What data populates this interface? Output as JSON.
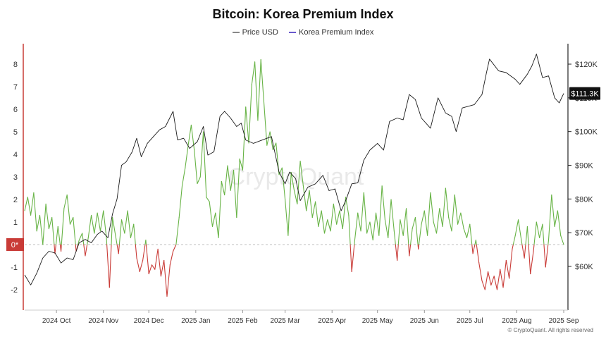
{
  "chart_data": {
    "type": "line",
    "title": "Bitcoin: Korea Premium Index",
    "legend": [
      "Price USD",
      "Korea Premium Index"
    ],
    "watermark": "CryptoQuant",
    "copyright": "© CryptoQuant. All rights reserved",
    "left_axis": {
      "ticks": [
        8,
        7,
        6,
        5,
        4,
        3,
        2,
        1,
        -1,
        -2
      ],
      "zero_label": "0*",
      "ylim": [
        -2.9,
        8.6
      ]
    },
    "right_axis": {
      "ticks": [
        "$120K",
        "$110K",
        "$100K",
        "$90K",
        "$80K",
        "$70K",
        "$60K"
      ],
      "tick_values": [
        120000,
        110000,
        100000,
        90000,
        80000,
        70000,
        60000
      ],
      "current_label": "$111.3K",
      "current_value": 111300
    },
    "x_axis": {
      "ticks": [
        "2024 Oct",
        "2024 Nov",
        "2024 Dec",
        "2025 Jan",
        "2025 Feb",
        "2025 Mar",
        "2025 Apr",
        "2025 May",
        "2025 Jun",
        "2025 Jul",
        "2025 Aug",
        "2025 Sep"
      ],
      "start": "2024-09-10",
      "end": "2025-09-01"
    },
    "series": [
      {
        "name": "Price USD",
        "color": "#1a1a1a",
        "points": [
          [
            "2024-09-10",
            57500
          ],
          [
            "2024-09-14",
            54500
          ],
          [
            "2024-09-18",
            58000
          ],
          [
            "2024-09-22",
            62500
          ],
          [
            "2024-09-26",
            64500
          ],
          [
            "2024-09-30",
            64000
          ],
          [
            "2024-10-04",
            61000
          ],
          [
            "2024-10-08",
            62500
          ],
          [
            "2024-10-12",
            62000
          ],
          [
            "2024-10-16",
            67000
          ],
          [
            "2024-10-20",
            68000
          ],
          [
            "2024-10-24",
            67000
          ],
          [
            "2024-10-28",
            69500
          ],
          [
            "2024-10-31",
            70500
          ],
          [
            "2024-11-04",
            68500
          ],
          [
            "2024-11-07",
            75500
          ],
          [
            "2024-11-10",
            80000
          ],
          [
            "2024-11-13",
            90000
          ],
          [
            "2024-11-16",
            91000
          ],
          [
            "2024-11-20",
            94000
          ],
          [
            "2024-11-23",
            98000
          ],
          [
            "2024-11-26",
            92500
          ],
          [
            "2024-11-30",
            96500
          ],
          [
            "2024-12-04",
            98500
          ],
          [
            "2024-12-08",
            100500
          ],
          [
            "2024-12-12",
            101500
          ],
          [
            "2024-12-17",
            106000
          ],
          [
            "2024-12-20",
            97500
          ],
          [
            "2024-12-24",
            98000
          ],
          [
            "2024-12-28",
            95000
          ],
          [
            "2025-01-02",
            97000
          ],
          [
            "2025-01-06",
            101500
          ],
          [
            "2025-01-09",
            93000
          ],
          [
            "2025-01-13",
            94000
          ],
          [
            "2025-01-17",
            104500
          ],
          [
            "2025-01-20",
            106000
          ],
          [
            "2025-01-24",
            104000
          ],
          [
            "2025-01-28",
            101500
          ],
          [
            "2025-01-31",
            102500
          ],
          [
            "2025-02-03",
            97500
          ],
          [
            "2025-02-08",
            96500
          ],
          [
            "2025-02-14",
            97500
          ],
          [
            "2025-02-20",
            98500
          ],
          [
            "2025-02-25",
            88000
          ],
          [
            "2025-03-01",
            84500
          ],
          [
            "2025-03-04",
            88000
          ],
          [
            "2025-03-08",
            86000
          ],
          [
            "2025-03-11",
            79500
          ],
          [
            "2025-03-16",
            83500
          ],
          [
            "2025-03-21",
            84500
          ],
          [
            "2025-03-26",
            87000
          ],
          [
            "2025-03-30",
            82500
          ],
          [
            "2025-04-03",
            83000
          ],
          [
            "2025-04-07",
            76500
          ],
          [
            "2025-04-10",
            79500
          ],
          [
            "2025-04-14",
            84500
          ],
          [
            "2025-04-18",
            84800
          ],
          [
            "2025-04-22",
            91500
          ],
          [
            "2025-04-26",
            94500
          ],
          [
            "2025-05-01",
            96500
          ],
          [
            "2025-05-05",
            94500
          ],
          [
            "2025-05-09",
            103000
          ],
          [
            "2025-05-14",
            104000
          ],
          [
            "2025-05-18",
            103500
          ],
          [
            "2025-05-22",
            111000
          ],
          [
            "2025-05-26",
            109500
          ],
          [
            "2025-05-30",
            104000
          ],
          [
            "2025-06-05",
            101000
          ],
          [
            "2025-06-10",
            110000
          ],
          [
            "2025-06-15",
            105500
          ],
          [
            "2025-06-19",
            104500
          ],
          [
            "2025-06-22",
            100000
          ],
          [
            "2025-06-26",
            107000
          ],
          [
            "2025-06-30",
            107500
          ],
          [
            "2025-07-04",
            108000
          ],
          [
            "2025-07-09",
            111000
          ],
          [
            "2025-07-12",
            117500
          ],
          [
            "2025-07-14",
            121500
          ],
          [
            "2025-07-20",
            118000
          ],
          [
            "2025-07-25",
            117500
          ],
          [
            "2025-07-31",
            115500
          ],
          [
            "2025-08-03",
            114000
          ],
          [
            "2025-08-08",
            117000
          ],
          [
            "2025-08-11",
            119500
          ],
          [
            "2025-08-14",
            123000
          ],
          [
            "2025-08-18",
            116000
          ],
          [
            "2025-08-22",
            116500
          ],
          [
            "2025-08-26",
            110000
          ],
          [
            "2025-08-29",
            108500
          ],
          [
            "2025-09-01",
            111300
          ]
        ]
      },
      {
        "name": "Korea Premium Index",
        "color_positive": "#67b345",
        "color_negative": "#c93b37",
        "points": [
          [
            "2024-09-10",
            1.5
          ],
          [
            "2024-09-12",
            2.1
          ],
          [
            "2024-09-14",
            1.3
          ],
          [
            "2024-09-16",
            2.3
          ],
          [
            "2024-09-18",
            0.6
          ],
          [
            "2024-09-20",
            1.3
          ],
          [
            "2024-09-22",
            0.0
          ],
          [
            "2024-09-24",
            1.8
          ],
          [
            "2024-09-26",
            0.7
          ],
          [
            "2024-09-28",
            1.2
          ],
          [
            "2024-09-30",
            -0.4
          ],
          [
            "2024-10-02",
            0.8
          ],
          [
            "2024-10-04",
            -0.3
          ],
          [
            "2024-10-06",
            1.6
          ],
          [
            "2024-10-08",
            2.2
          ],
          [
            "2024-10-10",
            0.9
          ],
          [
            "2024-10-12",
            1.2
          ],
          [
            "2024-10-14",
            -0.3
          ],
          [
            "2024-10-16",
            0.2
          ],
          [
            "2024-10-18",
            0.5
          ],
          [
            "2024-10-20",
            -0.5
          ],
          [
            "2024-10-22",
            0.3
          ],
          [
            "2024-10-24",
            1.3
          ],
          [
            "2024-10-26",
            0.5
          ],
          [
            "2024-10-28",
            1.4
          ],
          [
            "2024-10-30",
            0.6
          ],
          [
            "2024-11-01",
            1.5
          ],
          [
            "2024-11-03",
            0.3
          ],
          [
            "2024-11-05",
            -1.9
          ],
          [
            "2024-11-07",
            1.2
          ],
          [
            "2024-11-09",
            0.4
          ],
          [
            "2024-11-11",
            -0.4
          ],
          [
            "2024-11-13",
            1.1
          ],
          [
            "2024-11-15",
            0.5
          ],
          [
            "2024-11-17",
            1.5
          ],
          [
            "2024-11-19",
            0.3
          ],
          [
            "2024-11-21",
            0.9
          ],
          [
            "2024-11-23",
            -0.6
          ],
          [
            "2024-11-25",
            -1.2
          ],
          [
            "2024-11-27",
            -0.7
          ],
          [
            "2024-11-29",
            0.2
          ],
          [
            "2024-12-01",
            -1.3
          ],
          [
            "2024-12-03",
            -0.9
          ],
          [
            "2024-12-05",
            -1.1
          ],
          [
            "2024-12-07",
            -0.2
          ],
          [
            "2024-12-09",
            -1.4
          ],
          [
            "2024-12-11",
            -0.7
          ],
          [
            "2024-12-13",
            -2.3
          ],
          [
            "2024-12-15",
            -0.9
          ],
          [
            "2024-12-17",
            -0.3
          ],
          [
            "2024-12-19",
            0.0
          ],
          [
            "2024-12-21",
            1.2
          ],
          [
            "2024-12-23",
            2.6
          ],
          [
            "2024-12-25",
            3.4
          ],
          [
            "2024-12-27",
            4.4
          ],
          [
            "2024-12-29",
            5.3
          ],
          [
            "2024-12-31",
            4.2
          ],
          [
            "2025-01-02",
            2.7
          ],
          [
            "2025-01-04",
            3.0
          ],
          [
            "2025-01-06",
            5.0
          ],
          [
            "2025-01-08",
            2.1
          ],
          [
            "2025-01-10",
            1.9
          ],
          [
            "2025-01-12",
            0.8
          ],
          [
            "2025-01-14",
            1.4
          ],
          [
            "2025-01-16",
            0.3
          ],
          [
            "2025-01-18",
            2.8
          ],
          [
            "2025-01-20",
            2.2
          ],
          [
            "2025-01-22",
            3.5
          ],
          [
            "2025-01-24",
            2.4
          ],
          [
            "2025-01-26",
            3.3
          ],
          [
            "2025-01-28",
            1.2
          ],
          [
            "2025-01-30",
            3.8
          ],
          [
            "2025-02-01",
            3.3
          ],
          [
            "2025-02-03",
            6.1
          ],
          [
            "2025-02-05",
            4.5
          ],
          [
            "2025-02-07",
            7.1
          ],
          [
            "2025-02-09",
            8.1
          ],
          [
            "2025-02-11",
            5.5
          ],
          [
            "2025-02-13",
            8.2
          ],
          [
            "2025-02-15",
            6.3
          ],
          [
            "2025-02-17",
            4.4
          ],
          [
            "2025-02-19",
            5.0
          ],
          [
            "2025-02-21",
            4.2
          ],
          [
            "2025-02-23",
            4.5
          ],
          [
            "2025-02-25",
            3.1
          ],
          [
            "2025-02-27",
            3.4
          ],
          [
            "2025-03-01",
            2.0
          ],
          [
            "2025-03-03",
            0.4
          ],
          [
            "2025-03-05",
            3.2
          ],
          [
            "2025-03-07",
            2.4
          ],
          [
            "2025-03-09",
            1.8
          ],
          [
            "2025-03-11",
            3.7
          ],
          [
            "2025-03-13",
            2.6
          ],
          [
            "2025-03-15",
            1.5
          ],
          [
            "2025-03-17",
            2.4
          ],
          [
            "2025-03-19",
            1.2
          ],
          [
            "2025-03-21",
            1.9
          ],
          [
            "2025-03-23",
            0.8
          ],
          [
            "2025-03-25",
            1.5
          ],
          [
            "2025-03-27",
            0.5
          ],
          [
            "2025-03-29",
            1.1
          ],
          [
            "2025-03-31",
            0.6
          ],
          [
            "2025-04-02",
            1.8
          ],
          [
            "2025-04-04",
            0.9
          ],
          [
            "2025-04-06",
            1.5
          ],
          [
            "2025-04-08",
            0.7
          ],
          [
            "2025-04-10",
            2.1
          ],
          [
            "2025-04-12",
            1.3
          ],
          [
            "2025-04-14",
            -1.2
          ],
          [
            "2025-04-16",
            0.2
          ],
          [
            "2025-04-18",
            1.4
          ],
          [
            "2025-04-20",
            0.6
          ],
          [
            "2025-04-22",
            2.3
          ],
          [
            "2025-04-24",
            0.5
          ],
          [
            "2025-04-26",
            1.0
          ],
          [
            "2025-04-28",
            0.2
          ],
          [
            "2025-04-30",
            1.4
          ],
          [
            "2025-05-02",
            0.4
          ],
          [
            "2025-05-04",
            2.6
          ],
          [
            "2025-05-06",
            1.1
          ],
          [
            "2025-05-08",
            0.3
          ],
          [
            "2025-05-10",
            2.0
          ],
          [
            "2025-05-12",
            0.6
          ],
          [
            "2025-05-14",
            -0.7
          ],
          [
            "2025-05-16",
            1.1
          ],
          [
            "2025-05-18",
            0.4
          ],
          [
            "2025-05-20",
            1.6
          ],
          [
            "2025-05-22",
            -0.5
          ],
          [
            "2025-05-24",
            0.7
          ],
          [
            "2025-05-26",
            1.2
          ],
          [
            "2025-05-28",
            -0.2
          ],
          [
            "2025-05-30",
            0.9
          ],
          [
            "2025-06-01",
            1.5
          ],
          [
            "2025-06-03",
            0.4
          ],
          [
            "2025-06-05",
            2.3
          ],
          [
            "2025-06-07",
            1.0
          ],
          [
            "2025-06-09",
            0.5
          ],
          [
            "2025-06-11",
            1.6
          ],
          [
            "2025-06-13",
            0.8
          ],
          [
            "2025-06-15",
            2.5
          ],
          [
            "2025-06-17",
            1.2
          ],
          [
            "2025-06-19",
            0.6
          ],
          [
            "2025-06-21",
            2.2
          ],
          [
            "2025-06-23",
            0.9
          ],
          [
            "2025-06-25",
            1.4
          ],
          [
            "2025-06-27",
            0.7
          ],
          [
            "2025-06-29",
            0.3
          ],
          [
            "2025-07-01",
            0.9
          ],
          [
            "2025-07-03",
            -0.4
          ],
          [
            "2025-07-05",
            0.2
          ],
          [
            "2025-07-07",
            -0.8
          ],
          [
            "2025-07-09",
            -1.6
          ],
          [
            "2025-07-11",
            -2.0
          ],
          [
            "2025-07-13",
            -1.2
          ],
          [
            "2025-07-15",
            -1.8
          ],
          [
            "2025-07-17",
            -1.4
          ],
          [
            "2025-07-19",
            -2.0
          ],
          [
            "2025-07-21",
            -1.1
          ],
          [
            "2025-07-23",
            -1.9
          ],
          [
            "2025-07-25",
            -0.7
          ],
          [
            "2025-07-27",
            -1.5
          ],
          [
            "2025-07-29",
            -0.2
          ],
          [
            "2025-07-31",
            0.4
          ],
          [
            "2025-08-02",
            1.1
          ],
          [
            "2025-08-04",
            0.2
          ],
          [
            "2025-08-06",
            -0.6
          ],
          [
            "2025-08-08",
            0.8
          ],
          [
            "2025-08-10",
            -1.3
          ],
          [
            "2025-08-12",
            -0.3
          ],
          [
            "2025-08-14",
            1.0
          ],
          [
            "2025-08-16",
            0.3
          ],
          [
            "2025-08-18",
            0.9
          ],
          [
            "2025-08-20",
            -1.0
          ],
          [
            "2025-08-22",
            0.2
          ],
          [
            "2025-08-24",
            2.2
          ],
          [
            "2025-08-26",
            0.8
          ],
          [
            "2025-08-28",
            1.5
          ],
          [
            "2025-08-30",
            0.4
          ],
          [
            "2025-09-01",
            0.0
          ]
        ]
      }
    ]
  }
}
